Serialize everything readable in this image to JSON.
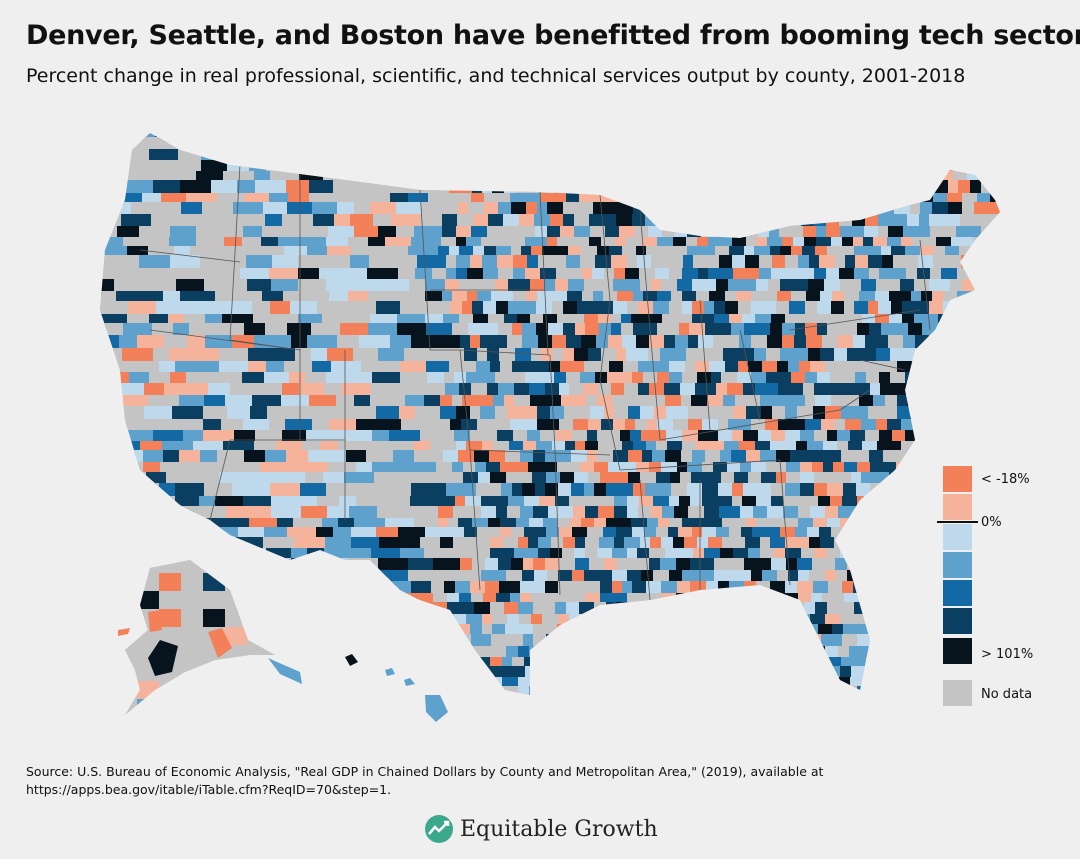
{
  "header": {
    "title": "Denver, Seattle, and Boston have benefitted from booming tech sectors",
    "subtitle": "Percent change in real professional, scientific, and technical services output by county, 2001-2018"
  },
  "legend": {
    "items": [
      {
        "label": "< -18%",
        "color": "#f4805a"
      },
      {
        "label": "",
        "color": "#f6b39c"
      },
      {
        "label": "0%",
        "color": "#bfd9ec"
      },
      {
        "label": "",
        "color": "#5ea1cd"
      },
      {
        "label": "",
        "color": "#1369a4"
      },
      {
        "label": "",
        "color": "#0b3f61"
      },
      {
        "label": "> 101%",
        "color": "#07131d"
      },
      {
        "label": "No data",
        "color": "#c4c4c4"
      }
    ]
  },
  "footer": {
    "source": "Source: U.S. Bureau of Economic Analysis, \"Real GDP in Chained Dollars by County and Metropolitan Area,\" (2019), available at https://apps.bea.gov/itable/iTable.cfm?ReqID=70&step=1.",
    "logo_text": "Equitable Growth"
  }
}
